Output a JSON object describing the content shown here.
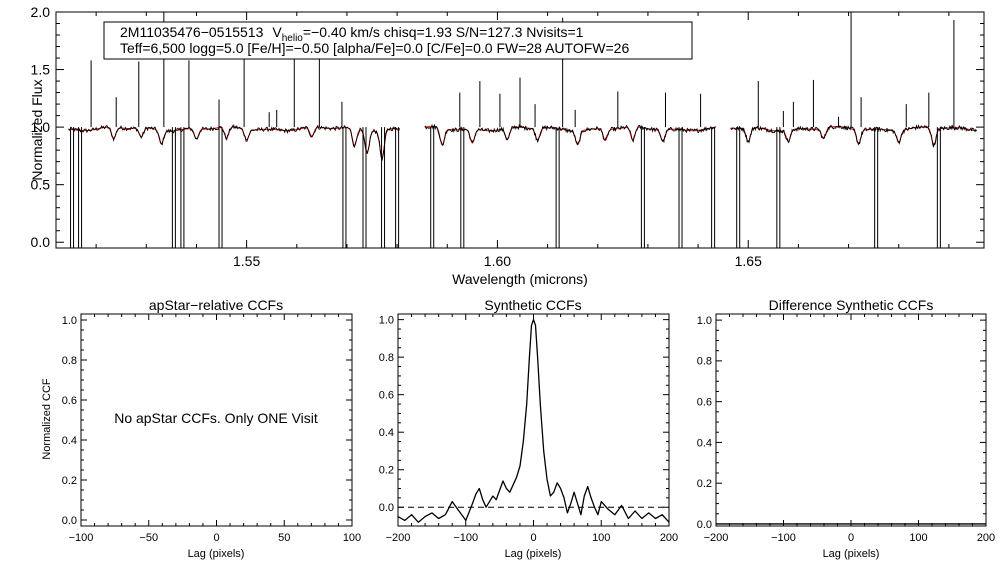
{
  "chart_data": [
    {
      "type": "line",
      "name": "spectrum",
      "xlabel": "Wavelength (microns)",
      "ylabel": "Normalized Flux",
      "xlim": [
        1.512,
        1.697
      ],
      "ylim": [
        -0.05,
        2.0
      ],
      "xticks": [
        1.55,
        1.6,
        1.65
      ],
      "xtick_labels": [
        "1.55",
        "1.60",
        "1.65"
      ],
      "yticks": [
        0.0,
        0.5,
        1.0,
        1.5,
        2.0
      ],
      "ytick_labels": [
        "0.0",
        "0.5",
        "1.0",
        "1.5",
        "2.0"
      ],
      "info_line1": {
        "star": "2M11035476−0515513",
        "v_symbol": "V",
        "v_sub": "helio",
        "v_rest": "=−0.40 km/s  chisq=1.93  S/N=127.3  Nvisits=1"
      },
      "info_line2": "Teff=6,500 logg=5.0 [Fe/H]=−0.50 [alpha/Fe]=0.0 [C/Fe]=0.0 FW=28 AUTOFW=26",
      "chips": [
        [
          1.5145,
          1.5805
        ],
        [
          1.5855,
          1.6435
        ],
        [
          1.6465,
          1.6955
        ]
      ],
      "series": [
        {
          "name": "observed",
          "color": "#000000"
        },
        {
          "name": "model",
          "color": "#dd0000"
        }
      ],
      "emission_spikes": [
        {
          "x": 1.519,
          "y": 1.58
        },
        {
          "x": 1.524,
          "y": 1.26
        },
        {
          "x": 1.5285,
          "y": 1.57
        },
        {
          "x": 1.5335,
          "y": 2.0
        },
        {
          "x": 1.5385,
          "y": 1.58
        },
        {
          "x": 1.5445,
          "y": 1.24
        },
        {
          "x": 1.5495,
          "y": 1.62
        },
        {
          "x": 1.5545,
          "y": 1.13
        },
        {
          "x": 1.556,
          "y": 1.15
        },
        {
          "x": 1.5595,
          "y": 1.6
        },
        {
          "x": 1.5645,
          "y": 1.62
        },
        {
          "x": 1.569,
          "y": 1.22
        },
        {
          "x": 1.5925,
          "y": 1.3
        },
        {
          "x": 1.5965,
          "y": 1.4
        },
        {
          "x": 1.6005,
          "y": 1.29
        },
        {
          "x": 1.6045,
          "y": 1.43
        },
        {
          "x": 1.6075,
          "y": 1.2
        },
        {
          "x": 1.613,
          "y": 1.95
        },
        {
          "x": 1.6155,
          "y": 1.15
        },
        {
          "x": 1.624,
          "y": 1.31
        },
        {
          "x": 1.6335,
          "y": 1.3
        },
        {
          "x": 1.6405,
          "y": 1.29
        },
        {
          "x": 1.652,
          "y": 1.4
        },
        {
          "x": 1.657,
          "y": 1.14
        },
        {
          "x": 1.659,
          "y": 1.22
        },
        {
          "x": 1.663,
          "y": 1.41
        },
        {
          "x": 1.668,
          "y": 1.09
        },
        {
          "x": 1.6705,
          "y": 2.0
        },
        {
          "x": 1.6725,
          "y": 1.26
        },
        {
          "x": 1.6815,
          "y": 1.2
        },
        {
          "x": 1.686,
          "y": 1.3
        },
        {
          "x": 1.691,
          "y": 1.93
        }
      ],
      "dropouts": [
        {
          "x": 1.5152
        },
        {
          "x": 1.5168
        },
        {
          "x": 1.5355
        },
        {
          "x": 1.5372
        },
        {
          "x": 1.5448
        },
        {
          "x": 1.5695
        },
        {
          "x": 1.5735
        },
        {
          "x": 1.5772
        },
        {
          "x": 1.58
        },
        {
          "x": 1.587
        },
        {
          "x": 1.593
        },
        {
          "x": 1.612
        },
        {
          "x": 1.629
        },
        {
          "x": 1.6365
        },
        {
          "x": 1.643
        },
        {
          "x": 1.648
        },
        {
          "x": 1.656
        },
        {
          "x": 1.6755
        },
        {
          "x": 1.688
        }
      ],
      "absorption_lines": [
        {
          "x": 1.5235,
          "depth": 0.1
        },
        {
          "x": 1.529,
          "depth": 0.08
        },
        {
          "x": 1.533,
          "depth": 0.12
        },
        {
          "x": 1.54,
          "depth": 0.09
        },
        {
          "x": 1.546,
          "depth": 0.1
        },
        {
          "x": 1.55,
          "depth": 0.09
        },
        {
          "x": 1.563,
          "depth": 0.08
        },
        {
          "x": 1.5715,
          "depth": 0.15
        },
        {
          "x": 1.574,
          "depth": 0.2
        },
        {
          "x": 1.577,
          "depth": 0.25
        },
        {
          "x": 1.589,
          "depth": 0.15
        },
        {
          "x": 1.595,
          "depth": 0.12
        },
        {
          "x": 1.602,
          "depth": 0.1
        },
        {
          "x": 1.608,
          "depth": 0.1
        },
        {
          "x": 1.616,
          "depth": 0.12
        },
        {
          "x": 1.6215,
          "depth": 0.1
        },
        {
          "x": 1.627,
          "depth": 0.12
        },
        {
          "x": 1.633,
          "depth": 0.1
        },
        {
          "x": 1.65,
          "depth": 0.12
        },
        {
          "x": 1.658,
          "depth": 0.1
        },
        {
          "x": 1.665,
          "depth": 0.09
        },
        {
          "x": 1.672,
          "depth": 0.12
        },
        {
          "x": 1.68,
          "depth": 0.1
        },
        {
          "x": 1.687,
          "depth": 0.15
        }
      ]
    },
    {
      "type": "line",
      "name": "apstar-ccf",
      "title": "apStar−relative CCFs",
      "xlabel": "Lag (pixels)",
      "ylabel": "Normalized CCF",
      "xlim": [
        -100,
        100
      ],
      "ylim": [
        -0.03,
        1.03
      ],
      "xticks": [
        -100,
        -50,
        0,
        50,
        100
      ],
      "xtick_labels": [
        "−100",
        "−50",
        "0",
        "50",
        "100"
      ],
      "yticks": [
        0.0,
        0.2,
        0.4,
        0.6,
        0.8,
        1.0
      ],
      "ytick_labels": [
        "0.0",
        "0.2",
        "0.4",
        "0.6",
        "0.8",
        "1.0"
      ],
      "annotation": "No apStar CCFs.  Only ONE Visit",
      "series": []
    },
    {
      "type": "line",
      "name": "synthetic-ccf",
      "title": "Synthetic CCFs",
      "xlabel": "Lag (pixels)",
      "xlim": [
        -200,
        200
      ],
      "ylim": [
        -0.1,
        1.03
      ],
      "xticks": [
        -200,
        -100,
        0,
        100,
        200
      ],
      "xtick_labels": [
        "−200",
        "−100",
        "0",
        "100",
        "200"
      ],
      "yticks": [
        0.0,
        0.2,
        0.4,
        0.6,
        0.8,
        1.0
      ],
      "ytick_labels": [
        "0.0",
        "0.2",
        "0.4",
        "0.6",
        "0.8",
        "1.0"
      ],
      "zero_line": 0.0,
      "series": [
        {
          "name": "ccf",
          "color": "#000000",
          "x": [
            -200,
            -190,
            -180,
            -170,
            -160,
            -150,
            -140,
            -130,
            -120,
            -110,
            -100,
            -90,
            -85,
            -80,
            -75,
            -70,
            -65,
            -60,
            -55,
            -50,
            -45,
            -40,
            -35,
            -30,
            -25,
            -20,
            -15,
            -10,
            -6,
            -3,
            0,
            3,
            6,
            10,
            15,
            20,
            25,
            30,
            35,
            40,
            45,
            50,
            55,
            60,
            65,
            70,
            75,
            80,
            85,
            90,
            95,
            100,
            110,
            120,
            130,
            140,
            150,
            160,
            170,
            180,
            190,
            200
          ],
          "y": [
            -0.05,
            -0.07,
            -0.04,
            -0.08,
            -0.05,
            -0.03,
            -0.06,
            -0.04,
            0.03,
            -0.02,
            -0.07,
            0.02,
            0.07,
            0.1,
            0.04,
            0.0,
            0.03,
            0.06,
            0.04,
            0.09,
            0.14,
            0.1,
            0.08,
            0.12,
            0.16,
            0.22,
            0.35,
            0.55,
            0.8,
            0.97,
            1.0,
            0.97,
            0.8,
            0.55,
            0.3,
            0.15,
            0.06,
            0.08,
            0.13,
            0.1,
            0.05,
            -0.03,
            0.02,
            0.08,
            0.02,
            -0.04,
            0.06,
            0.11,
            0.05,
            0.0,
            -0.04,
            0.03,
            -0.01,
            -0.04,
            0.01,
            -0.06,
            -0.02,
            -0.06,
            -0.03,
            -0.06,
            -0.04,
            -0.08
          ]
        }
      ]
    },
    {
      "type": "line",
      "name": "difference-ccf",
      "title": "Difference Synthetic CCFs",
      "xlabel": "Lag (pixels)",
      "xlim": [
        -200,
        200
      ],
      "ylim": [
        -0.01,
        1.03
      ],
      "xticks": [
        -200,
        -100,
        0,
        100,
        200
      ],
      "xtick_labels": [
        "−200",
        "−100",
        "0",
        "100",
        "200"
      ],
      "yticks": [
        0.0,
        0.2,
        0.4,
        0.6,
        0.8,
        1.0
      ],
      "ytick_labels": [
        "0.0",
        "0.2",
        "0.4",
        "0.6",
        "0.8",
        "1.0"
      ],
      "series": [
        {
          "name": "difference",
          "color": "#000000",
          "x": [
            -200,
            200
          ],
          "y": [
            0.0,
            0.0
          ]
        }
      ]
    }
  ]
}
